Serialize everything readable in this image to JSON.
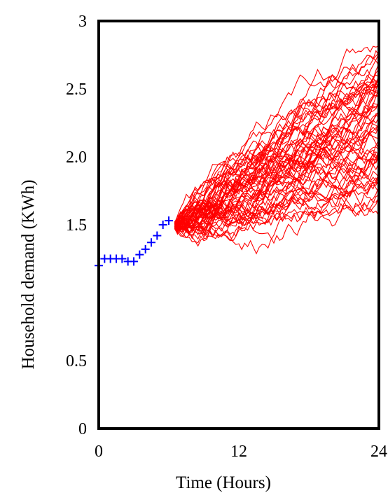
{
  "chart_data": {
    "type": "line",
    "title": "",
    "xlabel": "Time (Hours)",
    "ylabel": "Household demand (KWh)",
    "xlim": [
      0,
      24
    ],
    "ylim": [
      0,
      3
    ],
    "x_tick_labels": [
      "0",
      "12",
      "24"
    ],
    "y_tick_labels": [
      "0",
      "0.5",
      "1.5",
      "2.0",
      "2.5",
      "3"
    ],
    "grid": false,
    "legend": "none",
    "series": [
      {
        "marker": "cross",
        "color": "#0000ff",
        "x": [
          0.0,
          0.5,
          1.0,
          1.5,
          2.0,
          2.5,
          3.0,
          3.5,
          4.0,
          4.5,
          5.0,
          5.5,
          6.0
        ],
        "y": [
          1.2,
          1.25,
          1.25,
          1.25,
          1.25,
          1.23,
          1.23,
          1.28,
          1.32,
          1.37,
          1.42,
          1.5,
          1.53
        ]
      },
      {
        "type": "ensemble",
        "color": "#ff0000",
        "description_only": false,
        "x_start": 6.5,
        "x_end": 24,
        "start_y": 1.5,
        "trajectories": 60,
        "end_range": [
          1.3,
          2.75
        ]
      }
    ]
  }
}
